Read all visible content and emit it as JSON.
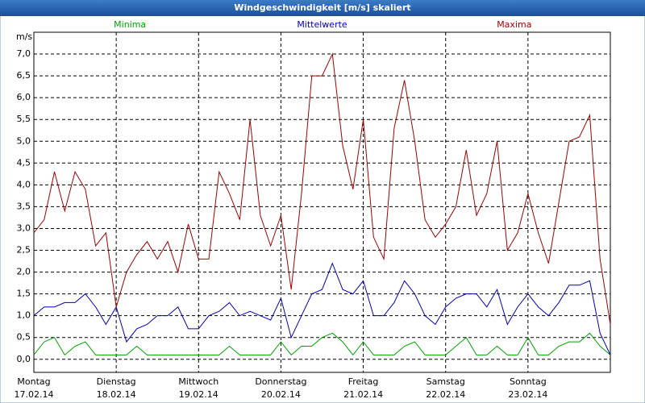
{
  "chart_data": {
    "type": "line",
    "title": "Windgeschwindigkeit [m/s] skaliert",
    "y_label": "m/s",
    "x": [
      0,
      3,
      6,
      9,
      12,
      15,
      18,
      21,
      24,
      27,
      30,
      33,
      36,
      39,
      42,
      45,
      48,
      51,
      54,
      57,
      60,
      63,
      66,
      69,
      72,
      75,
      78,
      81,
      84,
      87,
      90,
      93,
      96,
      99,
      102,
      105,
      108,
      111,
      114,
      117,
      120,
      123,
      126,
      129,
      132,
      135,
      138,
      141,
      144,
      147,
      150,
      153,
      156,
      159,
      162,
      165,
      168
    ],
    "xlim": [
      0,
      168
    ],
    "xticks": [
      {
        "value": 0,
        "label": "Montag"
      },
      {
        "value": 24,
        "label": "Dienstag"
      },
      {
        "value": 48,
        "label": "Mittwoch"
      },
      {
        "value": 72,
        "label": "Donnerstag"
      },
      {
        "value": 96,
        "label": "Freitag"
      },
      {
        "value": 120,
        "label": "Samstag"
      },
      {
        "value": 144,
        "label": "Sonntag"
      }
    ],
    "xtick_dates": [
      "17.02.14",
      "18.02.14",
      "19.02.14",
      "20.02.14",
      "21.02.14",
      "22.02.14",
      "23.02.14"
    ],
    "ylim": [
      -0.3,
      7.5
    ],
    "yticks": [
      {
        "value": 0,
        "label": "0,0"
      },
      {
        "value": 0.5,
        "label": "0,5"
      },
      {
        "value": 1,
        "label": "1,0"
      },
      {
        "value": 1.5,
        "label": "1,5"
      },
      {
        "value": 2,
        "label": "2,0"
      },
      {
        "value": 2.5,
        "label": "2,5"
      },
      {
        "value": 3,
        "label": "3,0"
      },
      {
        "value": 3.5,
        "label": "3,5"
      },
      {
        "value": 4,
        "label": "4,0"
      },
      {
        "value": 4.5,
        "label": "4,5"
      },
      {
        "value": 5,
        "label": "5,0"
      },
      {
        "value": 5.5,
        "label": "5,5"
      },
      {
        "value": 6,
        "label": "6,0"
      },
      {
        "value": 6.5,
        "label": "6,5"
      },
      {
        "value": 7,
        "label": "7,0"
      }
    ],
    "grid": true,
    "series": [
      {
        "name": "Minima",
        "color": "#00a000",
        "values": [
          0.1,
          0.4,
          0.5,
          0.1,
          0.3,
          0.4,
          0.1,
          0.1,
          0.1,
          0.1,
          0.3,
          0.1,
          0.1,
          0.1,
          0.1,
          0.1,
          0.1,
          0.1,
          0.1,
          0.3,
          0.1,
          0.1,
          0.1,
          0.1,
          0.4,
          0.1,
          0.3,
          0.3,
          0.5,
          0.6,
          0.4,
          0.1,
          0.4,
          0.1,
          0.1,
          0.1,
          0.3,
          0.4,
          0.1,
          0.1,
          0.1,
          0.3,
          0.5,
          0.1,
          0.1,
          0.3,
          0.1,
          0.1,
          0.5,
          0.1,
          0.1,
          0.3,
          0.4,
          0.4,
          0.6,
          0.3,
          0.1
        ]
      },
      {
        "name": "Mittelwerte",
        "color": "#0000b0",
        "values": [
          1.0,
          1.2,
          1.2,
          1.3,
          1.3,
          1.5,
          1.2,
          0.8,
          1.2,
          0.4,
          0.7,
          0.8,
          1.0,
          1.0,
          1.2,
          0.7,
          0.7,
          1.0,
          1.1,
          1.3,
          1.0,
          1.1,
          1.0,
          0.9,
          1.4,
          0.5,
          1.0,
          1.5,
          1.6,
          2.2,
          1.6,
          1.5,
          1.8,
          1.0,
          1.0,
          1.3,
          1.8,
          1.5,
          1.0,
          0.8,
          1.2,
          1.4,
          1.5,
          1.5,
          1.2,
          1.6,
          0.8,
          1.2,
          1.5,
          1.2,
          1.0,
          1.3,
          1.7,
          1.7,
          1.8,
          0.6,
          0.1
        ]
      },
      {
        "name": "Maxima",
        "color": "#a00000",
        "values": [
          2.9,
          3.2,
          4.3,
          3.4,
          4.3,
          3.9,
          2.6,
          2.9,
          1.2,
          2.0,
          2.4,
          2.7,
          2.3,
          2.7,
          2.0,
          3.1,
          2.3,
          2.3,
          4.3,
          3.8,
          3.2,
          5.5,
          3.3,
          2.6,
          3.3,
          1.6,
          3.8,
          6.5,
          6.5,
          7.0,
          4.9,
          3.9,
          5.5,
          2.8,
          2.3,
          5.3,
          6.4,
          5.0,
          3.2,
          2.8,
          3.1,
          3.5,
          4.8,
          3.3,
          3.8,
          5.0,
          2.5,
          2.9,
          3.8,
          2.9,
          2.2,
          3.6,
          5.0,
          5.1,
          5.6,
          2.3,
          0.8
        ]
      }
    ]
  }
}
